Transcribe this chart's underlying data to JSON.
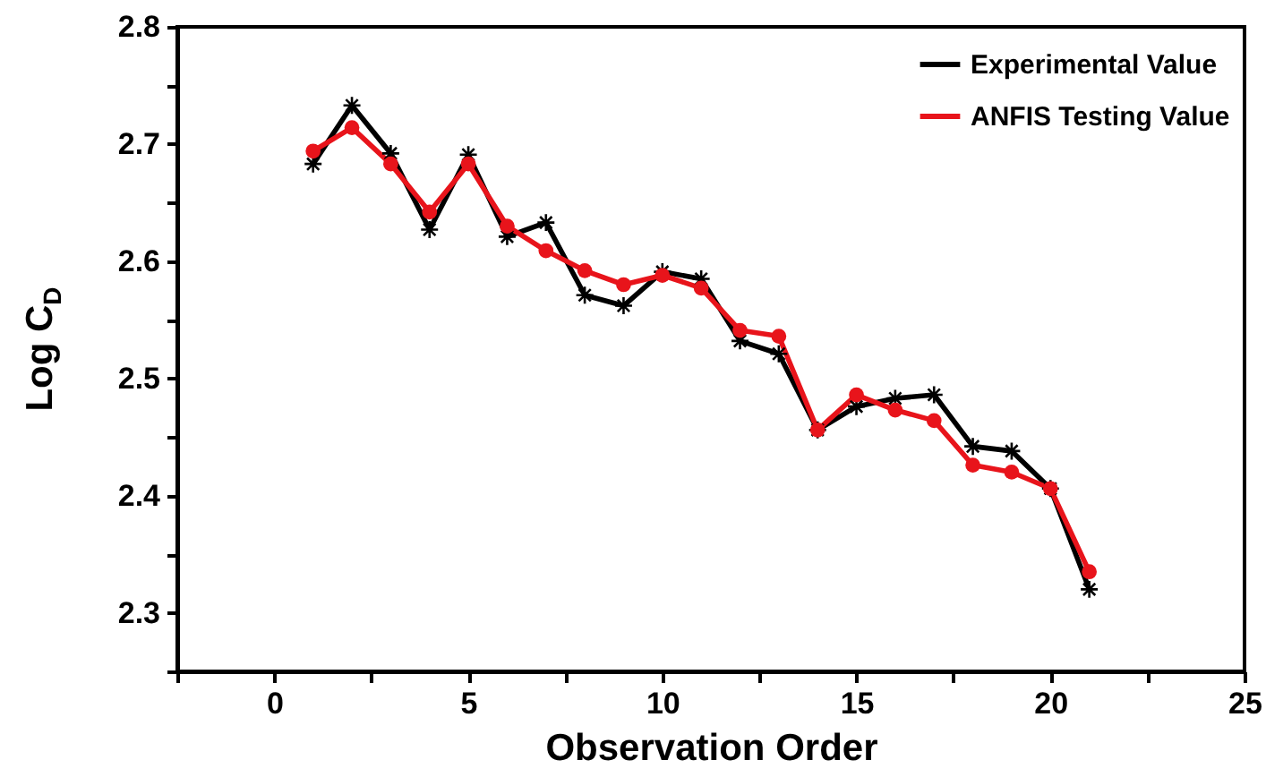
{
  "chart_data": {
    "type": "line",
    "xlabel": "Observation Order",
    "ylabel": "Log C$_{D}$",
    "x": [
      1,
      2,
      3,
      4,
      5,
      6,
      7,
      8,
      9,
      10,
      11,
      12,
      13,
      14,
      15,
      16,
      17,
      18,
      19,
      20,
      21
    ],
    "series": [
      {
        "name": "Experimental Value",
        "color": "#000000",
        "marker": "cross",
        "values": [
          2.683,
          2.733,
          2.692,
          2.627,
          2.691,
          2.621,
          2.633,
          2.571,
          2.562,
          2.591,
          2.585,
          2.532,
          2.521,
          2.456,
          2.476,
          2.483,
          2.486,
          2.442,
          2.438,
          2.406,
          2.32
        ]
      },
      {
        "name": "ANFIS Testing Value",
        "color": "#e8141b",
        "marker": "circle",
        "values": [
          2.694,
          2.714,
          2.683,
          2.642,
          2.683,
          2.63,
          2.609,
          2.592,
          2.58,
          2.588,
          2.577,
          2.541,
          2.536,
          2.456,
          2.486,
          2.473,
          2.464,
          2.426,
          2.42,
          2.406,
          2.335
        ]
      }
    ],
    "xlim": [
      -2.5,
      25
    ],
    "xticks": [
      {
        "value": -2.5,
        "label": null
      },
      0,
      {
        "value": 2.5,
        "label": null
      },
      5,
      {
        "value": 7.5,
        "label": null
      },
      10,
      {
        "value": 12.5,
        "label": null
      },
      15,
      {
        "value": 17.5,
        "label": null
      },
      20,
      {
        "value": 22.5,
        "label": null
      },
      25
    ],
    "ylim": [
      2.25,
      2.8
    ],
    "yticks": [
      {
        "value": 2.25,
        "label": null
      },
      2.3,
      {
        "value": 2.35,
        "label": null
      },
      2.4,
      {
        "value": 2.45,
        "label": null
      },
      2.5,
      {
        "value": 2.55,
        "label": null
      },
      2.6,
      {
        "value": 2.65,
        "label": null
      },
      2.7,
      {
        "value": 2.75,
        "label": null
      },
      2.8
    ],
    "grid": false,
    "legend": "top right",
    "line_style": "solid"
  }
}
